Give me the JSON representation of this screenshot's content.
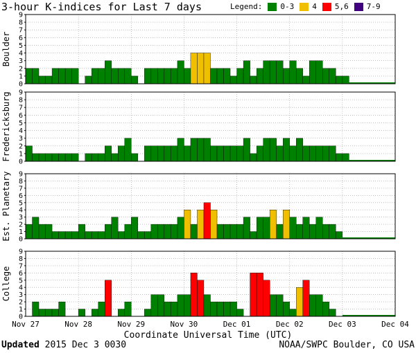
{
  "header": {
    "title": "3-hour K-indices for Last 7 days",
    "legend_label": "Legend:",
    "legend": [
      {
        "label": "0-3",
        "color": "#008000"
      },
      {
        "label": "4",
        "color": "#f0c000"
      },
      {
        "label": "5,6",
        "color": "#ff0000"
      },
      {
        "label": "7-9",
        "color": "#400080"
      }
    ]
  },
  "footer": {
    "updated_label": "Updated",
    "updated_value": "2015 Dec  3 0030",
    "source": "NOAA/SWPC Boulder, CO USA"
  },
  "chart_data": {
    "type": "bar",
    "xlabel": "Coordinate Universal Time (UTC)",
    "x_ticks": [
      "Nov 27",
      "Nov 28",
      "Nov 29",
      "Nov 30",
      "Dec 01",
      "Dec 02",
      "Dec 03",
      "Dec 04"
    ],
    "ylim": [
      0,
      9
    ],
    "y_ticks": [
      0,
      1,
      2,
      3,
      4,
      5,
      6,
      7,
      8,
      9
    ],
    "grid": true,
    "bins_per_day": 8,
    "series": [
      {
        "name": "Boulder",
        "values": [
          2,
          2,
          1,
          1,
          2,
          2,
          2,
          2,
          0,
          1,
          2,
          2,
          3,
          2,
          2,
          2,
          1,
          0,
          2,
          2,
          2,
          2,
          2,
          3,
          2,
          4,
          4,
          4,
          2,
          2,
          2,
          1,
          2,
          3,
          1,
          2,
          3,
          3,
          3,
          2,
          3,
          2,
          1,
          3,
          3,
          2,
          2,
          1,
          1
        ]
      },
      {
        "name": "Fredericksburg",
        "values": [
          2,
          1,
          1,
          1,
          1,
          1,
          1,
          1,
          0,
          1,
          1,
          1,
          2,
          1,
          2,
          3,
          1,
          0,
          2,
          2,
          2,
          2,
          2,
          3,
          2,
          3,
          3,
          3,
          2,
          2,
          2,
          2,
          2,
          3,
          1,
          2,
          3,
          3,
          2,
          3,
          2,
          3,
          2,
          2,
          2,
          2,
          2,
          1,
          1
        ]
      },
      {
        "name": "Est. Planetary",
        "values": [
          2,
          3,
          2,
          2,
          1,
          1,
          1,
          1,
          2,
          1,
          1,
          1,
          2,
          3,
          1,
          2,
          3,
          1,
          1,
          2,
          2,
          2,
          2,
          3,
          4,
          2,
          4,
          5,
          4,
          2,
          2,
          2,
          2,
          3,
          1,
          3,
          3,
          4,
          2,
          4,
          3,
          2,
          3,
          2,
          3,
          2,
          2,
          1
        ]
      },
      {
        "name": "College",
        "values": [
          0,
          2,
          1,
          1,
          1,
          2,
          0,
          0,
          1,
          0,
          1,
          2,
          5,
          0,
          1,
          2,
          0,
          0,
          1,
          3,
          3,
          2,
          2,
          3,
          3,
          6,
          5,
          3,
          2,
          2,
          2,
          2,
          1,
          0,
          6,
          6,
          5,
          3,
          3,
          2,
          1,
          4,
          5,
          3,
          3,
          2,
          1,
          0
        ]
      }
    ]
  }
}
